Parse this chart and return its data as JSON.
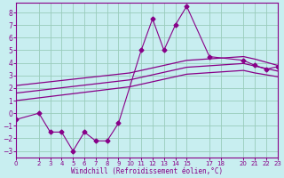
{
  "background_color": "#c8eef0",
  "grid_color": "#99ccbb",
  "line_color": "#880088",
  "marker_color": "#880088",
  "xlabel": "Windchill (Refroidissement éolien,°C)",
  "xlim": [
    0,
    23
  ],
  "ylim": [
    -3.5,
    8.8
  ],
  "xticks": [
    0,
    2,
    3,
    4,
    5,
    6,
    7,
    8,
    9,
    10,
    11,
    12,
    13,
    14,
    15,
    17,
    18,
    20,
    21,
    22,
    23
  ],
  "yticks": [
    -3,
    -2,
    -1,
    0,
    1,
    2,
    3,
    4,
    5,
    6,
    7,
    8
  ],
  "main_x": [
    0,
    2,
    3,
    4,
    5,
    6,
    7,
    8,
    9,
    11,
    12,
    13,
    14,
    15,
    17,
    20,
    21,
    22,
    23
  ],
  "main_y": [
    -0.5,
    0.0,
    -1.5,
    -1.5,
    -3.0,
    -1.5,
    -2.2,
    -2.2,
    -0.8,
    5.0,
    7.5,
    5.0,
    7.0,
    8.5,
    4.5,
    4.2,
    3.8,
    3.5,
    3.7
  ],
  "upper_x": [
    0,
    10,
    15,
    20,
    21,
    23
  ],
  "upper_y": [
    2.2,
    3.2,
    4.2,
    4.5,
    4.3,
    3.8
  ],
  "lower_x": [
    0,
    10,
    15,
    20,
    21,
    23
  ],
  "lower_y": [
    1.0,
    2.1,
    3.1,
    3.4,
    3.2,
    2.9
  ],
  "middle_x": [
    0,
    10,
    15,
    20,
    21,
    23
  ],
  "middle_y": [
    1.6,
    2.65,
    3.65,
    3.95,
    3.75,
    3.35
  ],
  "spine_color": "#880088"
}
